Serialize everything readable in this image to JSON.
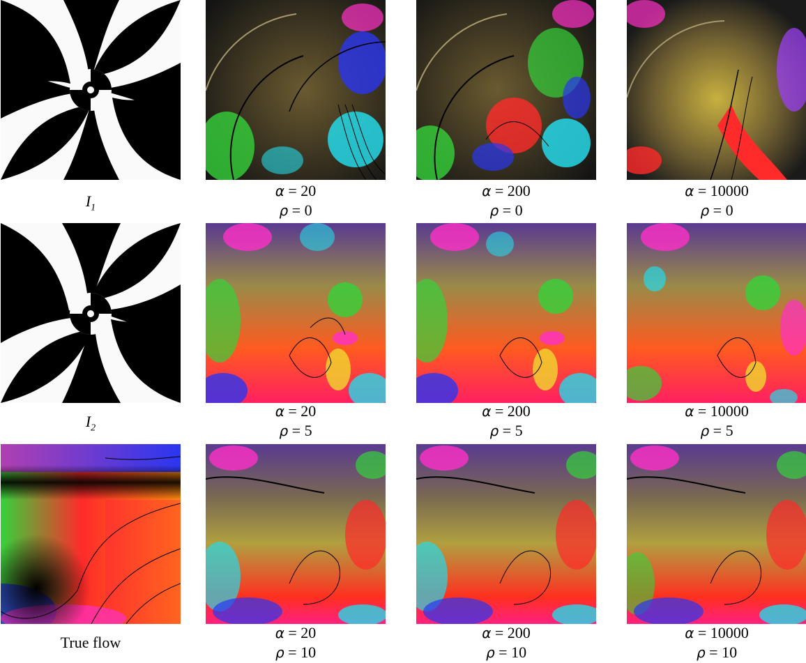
{
  "row_labels": {
    "i1": "I",
    "i1_sub": "1",
    "i2": "I",
    "i2_sub": "2",
    "true_flow": "True flow"
  },
  "symbols": {
    "alpha": "α",
    "rho": "ρ",
    "eq": " = "
  },
  "rows": [
    {
      "alphas": [
        "20",
        "200",
        "10000"
      ],
      "rho": "0"
    },
    {
      "alphas": [
        "20",
        "200",
        "10000"
      ],
      "rho": "5"
    },
    {
      "alphas": [
        "20",
        "200",
        "10000"
      ],
      "rho": "10"
    }
  ],
  "colors": {
    "red": "#ff2a2a",
    "orange": "#ff7a10",
    "olive": "#c8b040",
    "green": "#35d23a",
    "cyan": "#25d8e8",
    "blue": "#2a36f0",
    "magenta": "#ff30c8",
    "dark": "#141414"
  }
}
